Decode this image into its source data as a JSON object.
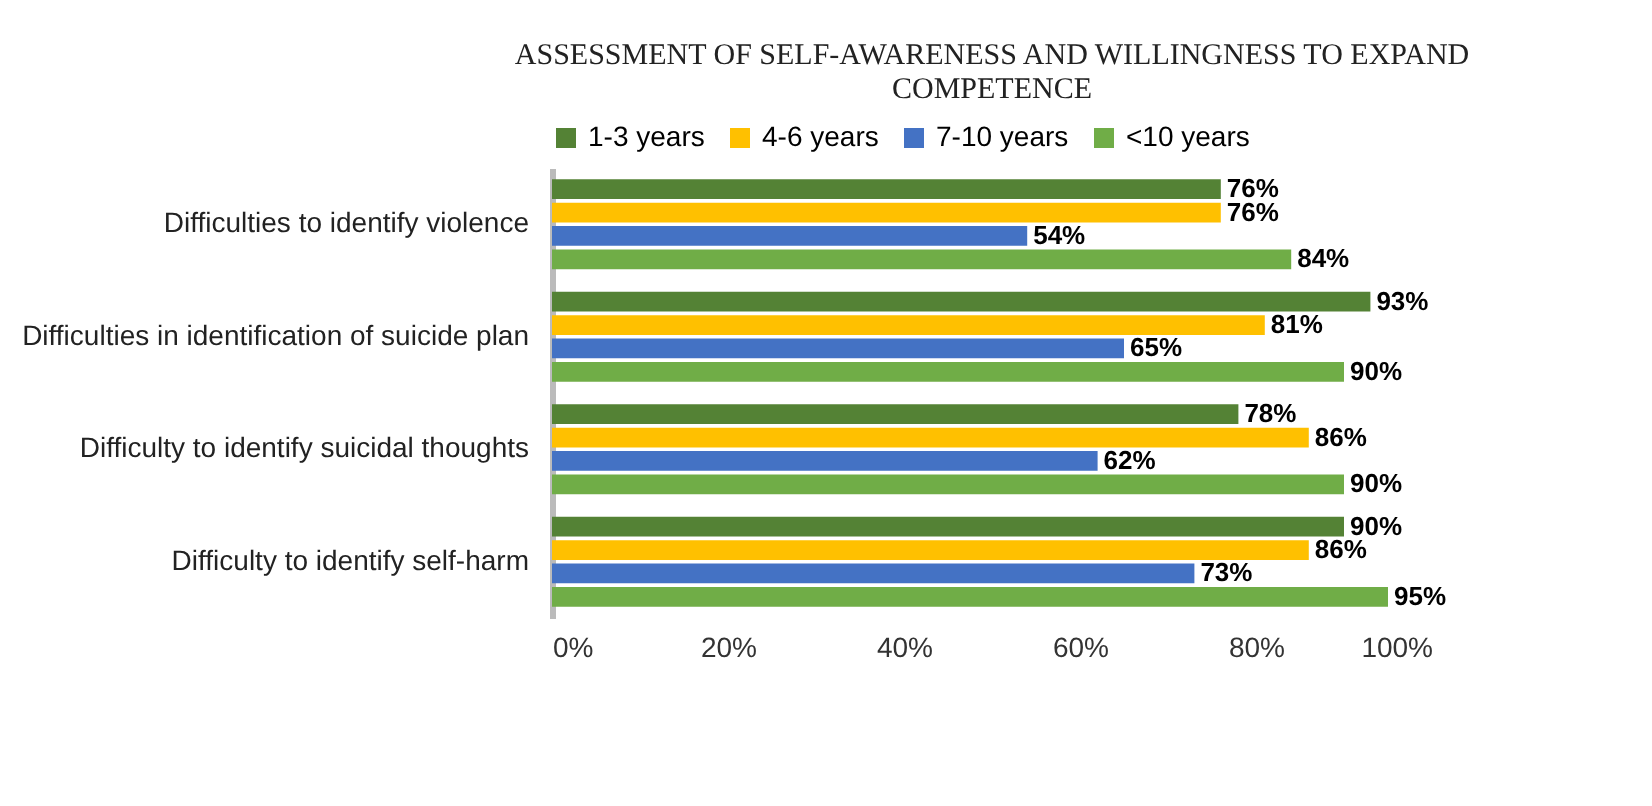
{
  "chart_data": {
    "type": "bar",
    "orientation": "horizontal",
    "title": "ASSESSMENT OF SELF-AWARENESS AND WILLINGNESS TO EXPAND COMPETENCE",
    "categories": [
      "Difficulties to identify violence",
      "Difficulties in identification of suicide plan",
      "Difficulty to identify suicidal thoughts",
      "Difficulty to identify self-harm"
    ],
    "series": [
      {
        "name": "1-3 years",
        "color": "#548235",
        "values": [
          76,
          93,
          78,
          90
        ],
        "value_labels": [
          "76%",
          "93%",
          "78%",
          "90%"
        ]
      },
      {
        "name": "4-6 years",
        "color": "#ffc000",
        "values": [
          76,
          81,
          86,
          86
        ],
        "value_labels": [
          "76%",
          "81%",
          "86%",
          "86%"
        ]
      },
      {
        "name": "7-10 years",
        "color": "#4472c4",
        "values": [
          54,
          65,
          62,
          73
        ],
        "value_labels": [
          "54%",
          "65%",
          "62%",
          "73%"
        ]
      },
      {
        "name": "<10 years",
        "color": "#70ad47",
        "values": [
          84,
          90,
          90,
          95
        ],
        "value_labels": [
          "84%",
          "90%",
          "90%",
          "95%"
        ]
      }
    ],
    "xlim": [
      0,
      100
    ],
    "xticks": [
      {
        "value": 0,
        "label": "0%"
      },
      {
        "value": 20,
        "label": "20%"
      },
      {
        "value": 40,
        "label": "40%"
      },
      {
        "value": 60,
        "label": "60%"
      },
      {
        "value": 80,
        "label": "80%"
      },
      {
        "value": 100,
        "label": "100%"
      }
    ],
    "grid": false,
    "legend": "top"
  }
}
